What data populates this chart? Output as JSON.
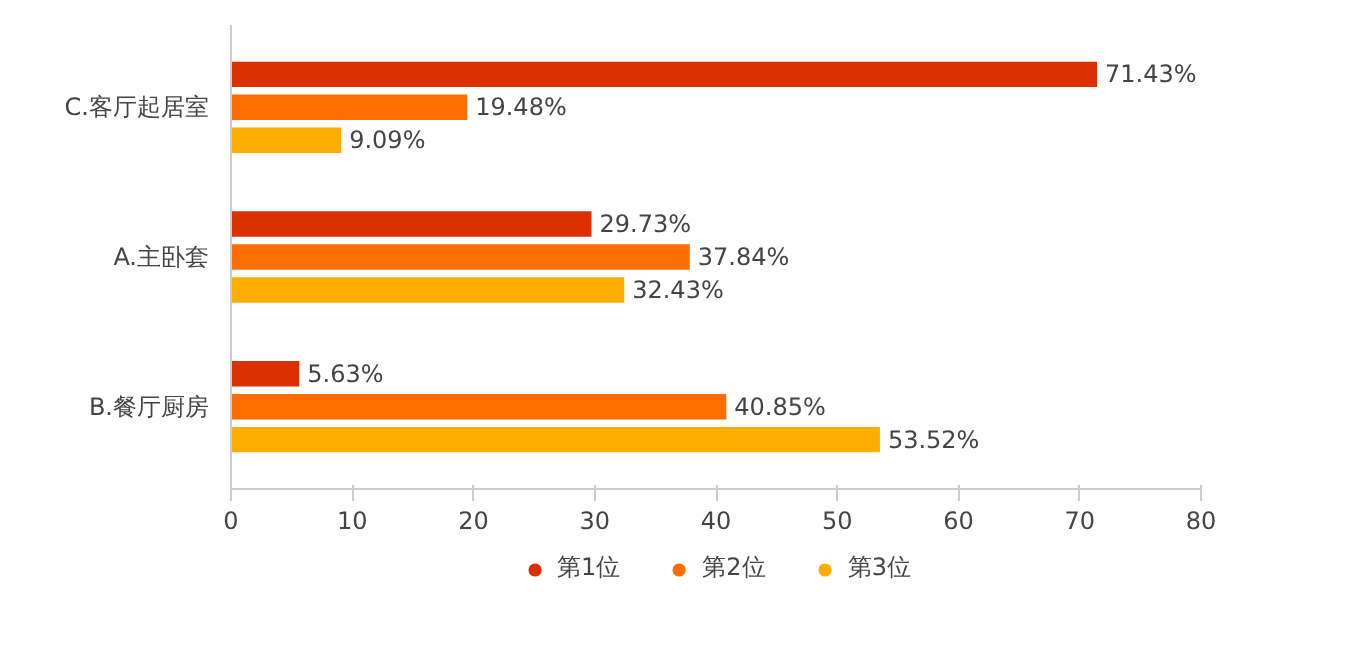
{
  "chart_data": {
    "type": "bar",
    "orientation": "horizontal",
    "categories": [
      "C.客厅起居室",
      "A.主卧套",
      "B.餐厅厨房"
    ],
    "series": [
      {
        "name": "第1位",
        "color": "#dd3000",
        "values": [
          71.43,
          29.73,
          5.63
        ],
        "value_labels": [
          "71.43%",
          "29.73%",
          "5.63%"
        ]
      },
      {
        "name": "第2位",
        "color": "#ff6d00",
        "values": [
          19.48,
          37.84,
          40.85
        ],
        "value_labels": [
          "19.48%",
          "37.84%",
          "40.85%"
        ]
      },
      {
        "name": "第3位",
        "color": "#ffad00",
        "values": [
          9.09,
          32.43,
          53.52
        ],
        "value_labels": [
          "9.09%",
          "32.43%",
          "53.52%"
        ]
      }
    ],
    "xlim": [
      0,
      80
    ],
    "xticks": [
      0,
      10,
      20,
      30,
      40,
      50,
      60,
      70,
      80
    ],
    "grid": false,
    "legend": "bottom"
  }
}
